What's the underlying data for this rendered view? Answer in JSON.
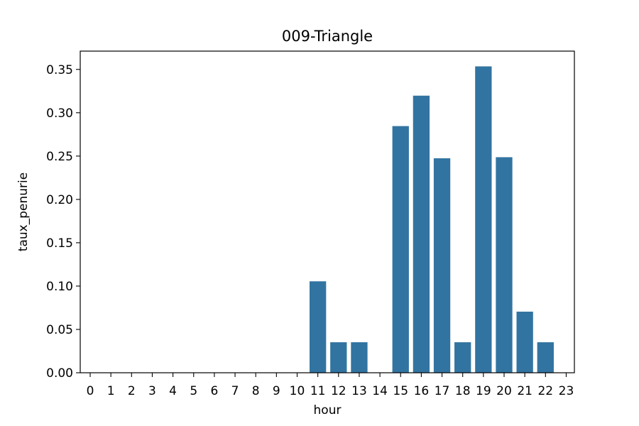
{
  "chart_data": {
    "type": "bar",
    "title": "009-Triangle",
    "xlabel": "hour",
    "ylabel": "taux_penurie",
    "categories": [
      "0",
      "1",
      "2",
      "3",
      "4",
      "5",
      "6",
      "7",
      "8",
      "9",
      "10",
      "11",
      "12",
      "13",
      "14",
      "15",
      "16",
      "17",
      "18",
      "19",
      "20",
      "21",
      "22",
      "23"
    ],
    "values": [
      0,
      0,
      0,
      0,
      0,
      0,
      0,
      0,
      0,
      0,
      0,
      0.1055,
      0.0352,
      0.0352,
      0,
      0.2846,
      0.3197,
      0.2475,
      0.0352,
      0.3535,
      0.2487,
      0.0705,
      0.0352,
      0
    ],
    "ylim": [
      0,
      0.3711
    ],
    "yticks": [
      0.0,
      0.05,
      0.1,
      0.15,
      0.2,
      0.25,
      0.3,
      0.35
    ],
    "ytick_labels": [
      "0.00",
      "0.05",
      "0.10",
      "0.15",
      "0.20",
      "0.25",
      "0.30",
      "0.35"
    ],
    "bar_color": "#3274a1",
    "grid": false,
    "legend": "none"
  }
}
